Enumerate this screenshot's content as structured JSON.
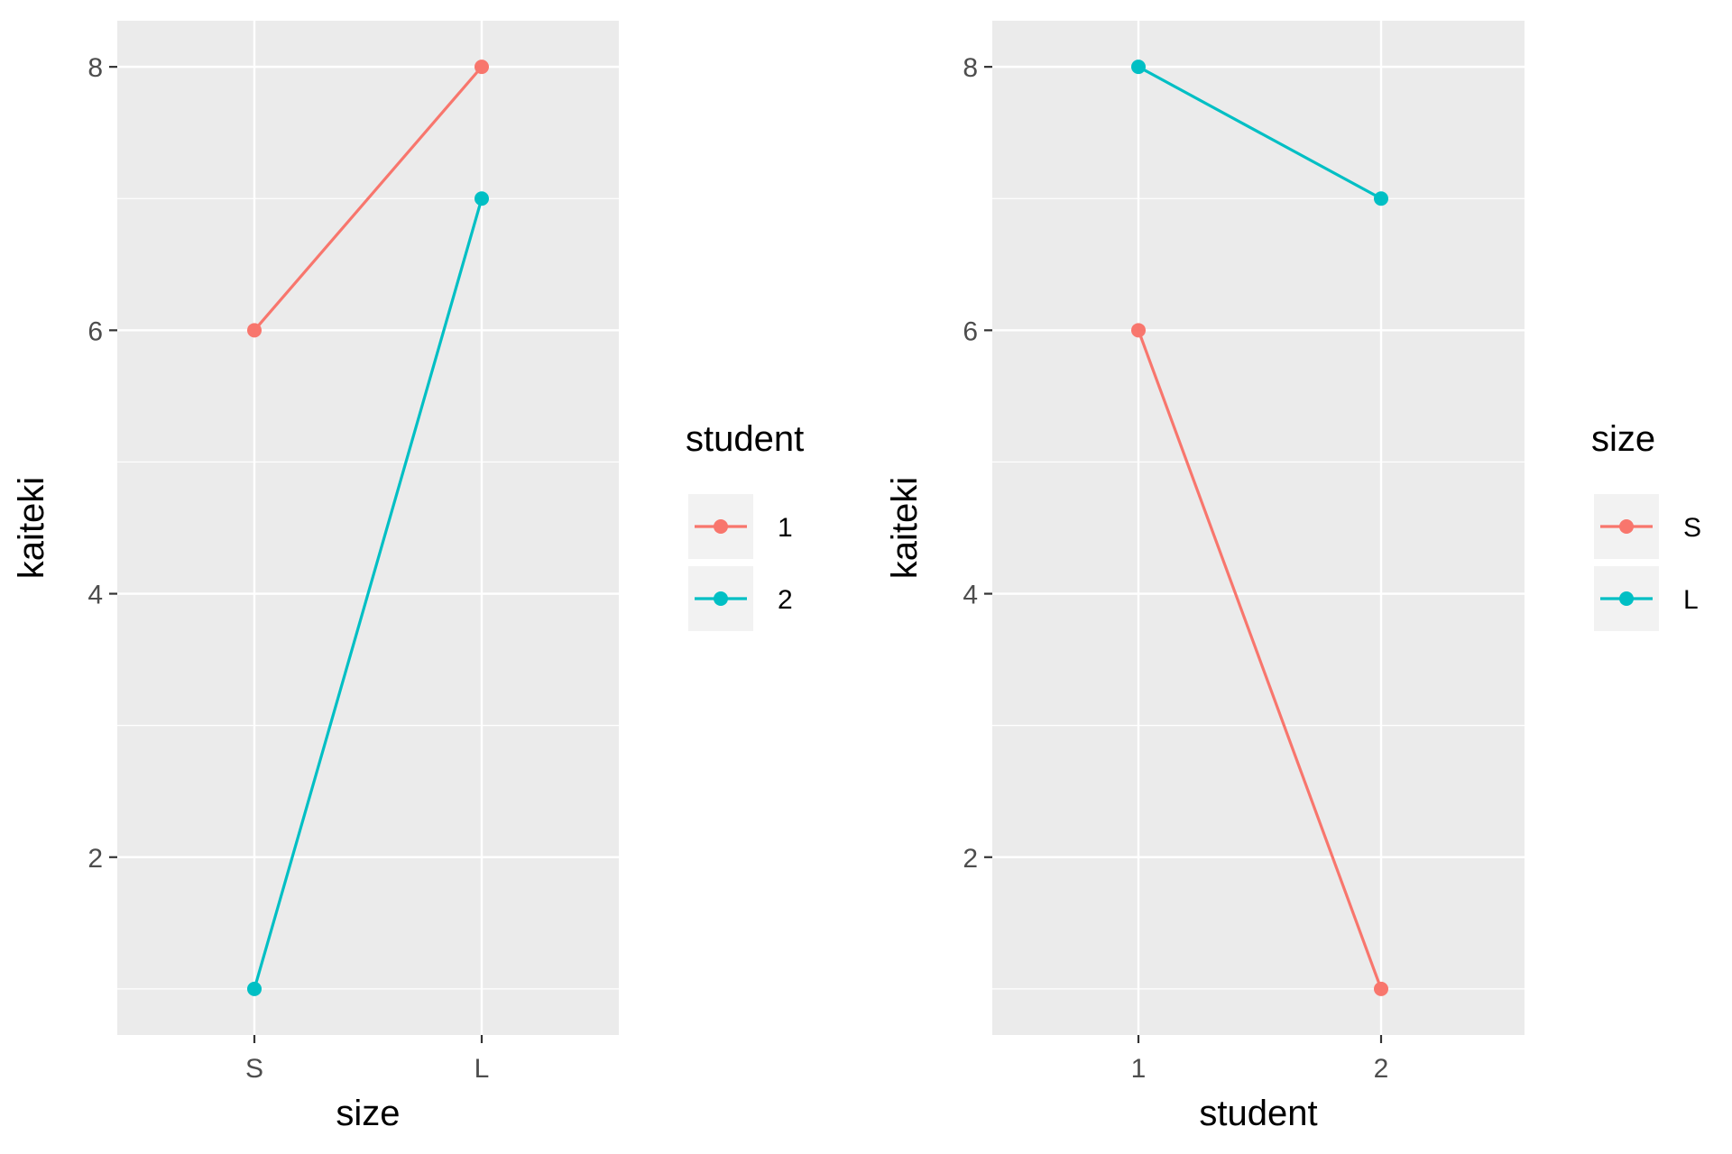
{
  "chart_data": [
    {
      "type": "line",
      "xlabel": "size",
      "ylabel": "kaiteki",
      "categories": [
        "S",
        "L"
      ],
      "ylim": [
        0.65,
        8.35
      ],
      "yticks": [
        2,
        4,
        6,
        8
      ],
      "grid": true,
      "legend": {
        "title": "student",
        "position": "right"
      },
      "series": [
        {
          "name": "1",
          "color": "#F8766D",
          "values": [
            6,
            8
          ]
        },
        {
          "name": "2",
          "color": "#00BFC4",
          "values": [
            1,
            7
          ]
        }
      ]
    },
    {
      "type": "line",
      "xlabel": "student",
      "ylabel": "kaiteki",
      "categories": [
        "1",
        "2"
      ],
      "ylim": [
        0.65,
        8.35
      ],
      "yticks": [
        2,
        4,
        6,
        8
      ],
      "grid": true,
      "legend": {
        "title": "size",
        "position": "right"
      },
      "series": [
        {
          "name": "S",
          "color": "#F8766D",
          "values": [
            6,
            1
          ]
        },
        {
          "name": "L",
          "color": "#00BFC4",
          "values": [
            8,
            7
          ]
        }
      ]
    }
  ]
}
